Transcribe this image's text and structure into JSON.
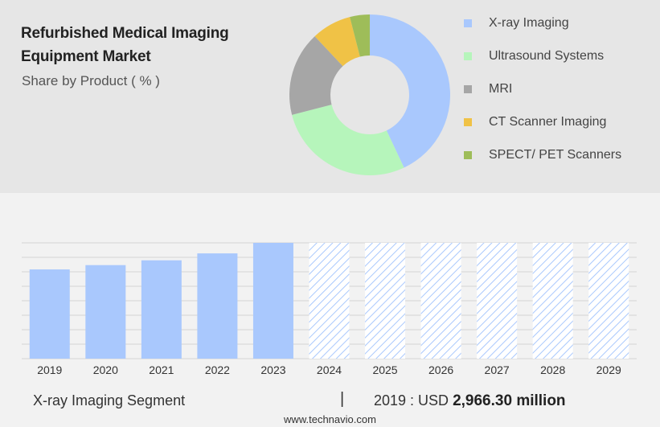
{
  "header": {
    "title": "Refurbished Medical Imaging Equipment Market",
    "subtitle": "Share by Product ( % )"
  },
  "chart_data": [
    {
      "type": "pie",
      "variant": "donut",
      "title": "Refurbished Medical Imaging Equipment Market",
      "subtitle": "Share by Product ( % )",
      "legend_position": "right",
      "slices": [
        {
          "label": "X-ray Imaging",
          "value": 43,
          "color": "#a9c8fd"
        },
        {
          "label": "Ultrasound Systems",
          "value": 28,
          "color": "#b6f5bb"
        },
        {
          "label": "MRI",
          "value": 17,
          "color": "#a6a6a6"
        },
        {
          "label": "CT Scanner Imaging",
          "value": 8,
          "color": "#f0c246"
        },
        {
          "label": "SPECT/ PET Scanners",
          "value": 4,
          "color": "#9ebd59"
        }
      ]
    },
    {
      "type": "bar",
      "categories": [
        "2019",
        "2020",
        "2021",
        "2022",
        "2023",
        "2024",
        "2025",
        "2026",
        "2027",
        "2028",
        "2029"
      ],
      "values": [
        2966.3,
        3110,
        3270,
        3500,
        3850,
        null,
        null,
        null,
        null,
        null,
        null
      ],
      "forecast_years": [
        "2024",
        "2025",
        "2026",
        "2027",
        "2028",
        "2029"
      ],
      "bar_color": "#a9c8fd",
      "forecast_color": "#a9c8fd",
      "ylim": [
        0,
        3850
      ],
      "grid": true
    }
  ],
  "footer": {
    "segment_label": "X-ray Imaging Segment",
    "separator": "|",
    "value_prefix": "2019 : USD",
    "value_amount": "2,966.30 million",
    "site": "www.technavio.com"
  }
}
